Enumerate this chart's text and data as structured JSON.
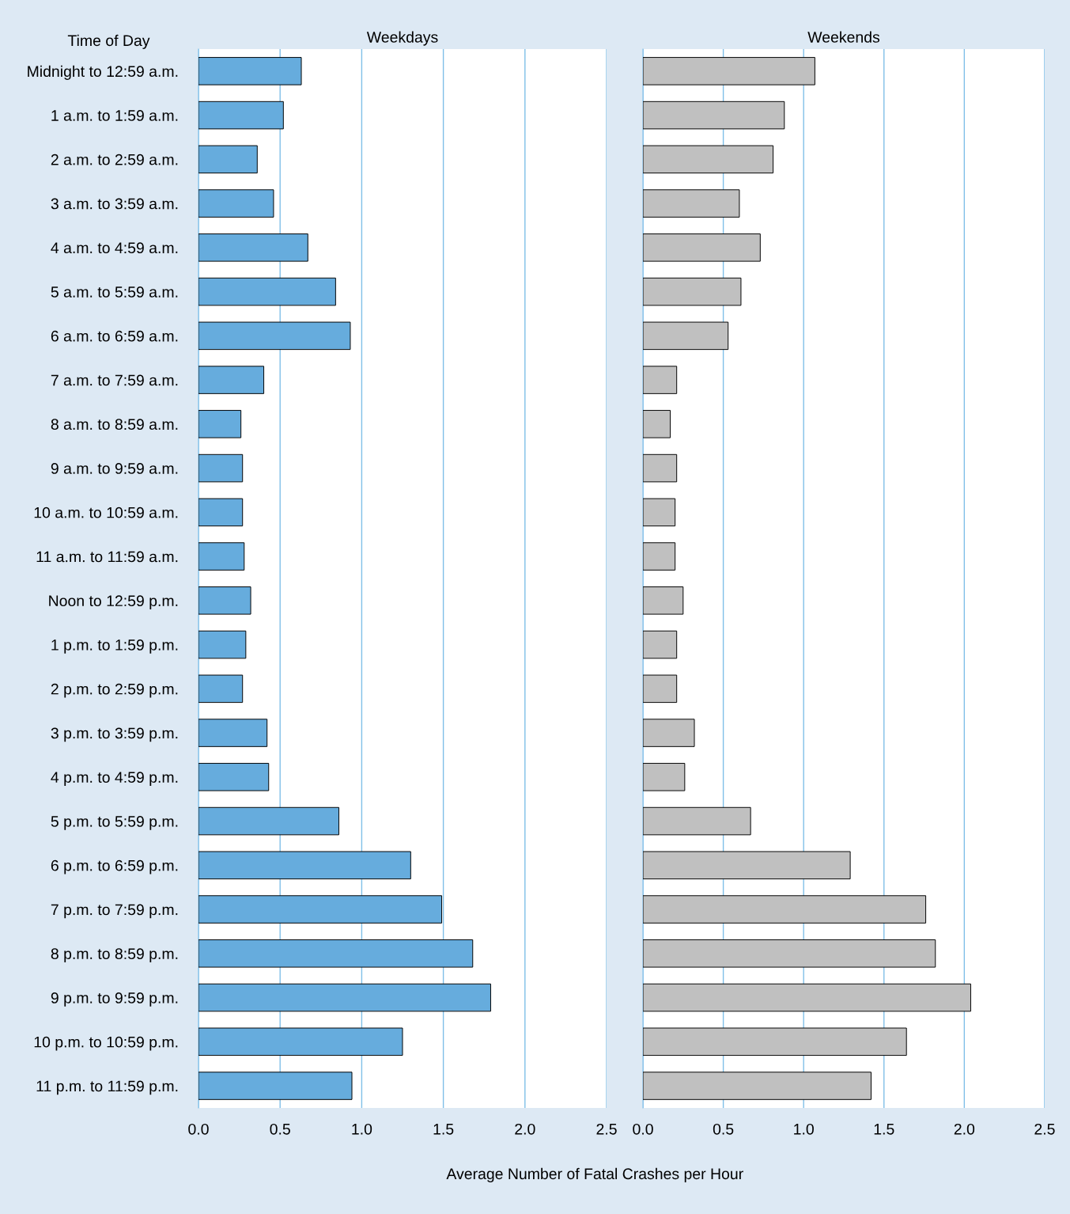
{
  "chart_data": [
    {
      "type": "bar",
      "orientation": "horizontal",
      "title": "Weekdays",
      "ylabel": "Time of Day",
      "xlabel": "Average Number of Fatal Crashes per Hour",
      "categories": [
        "Midnight to 12:59 a.m.",
        "1 a.m. to 1:59 a.m.",
        "2 a.m. to 2:59 a.m.",
        "3 a.m. to 3:59 a.m.",
        "4 a.m. to 4:59 a.m.",
        "5 a.m. to 5:59 a.m.",
        "6 a.m. to 6:59 a.m.",
        "7 a.m. to 7:59 a.m.",
        "8 a.m. to 8:59 a.m.",
        "9 a.m. to 9:59 a.m.",
        "10 a.m. to 10:59 a.m.",
        "11 a.m. to 11:59 a.m.",
        "Noon to 12:59 p.m.",
        "1 p.m. to 1:59 p.m.",
        "2 p.m. to 2:59 p.m.",
        "3 p.m. to 3:59 p.m.",
        "4 p.m. to 4:59 p.m.",
        "5 p.m. to 5:59 p.m.",
        "6 p.m. to 6:59 p.m.",
        "7 p.m. to 7:59 p.m.",
        "8 p.m. to 8:59 p.m.",
        "9 p.m. to 9:59 p.m.",
        "10 p.m. to 10:59 p.m.",
        "11 p.m. to 11:59 p.m."
      ],
      "values": [
        0.63,
        0.52,
        0.36,
        0.46,
        0.67,
        0.84,
        0.93,
        0.4,
        0.26,
        0.27,
        0.27,
        0.28,
        0.32,
        0.29,
        0.27,
        0.42,
        0.43,
        0.86,
        1.3,
        1.49,
        1.68,
        1.79,
        1.25,
        0.94
      ],
      "color": "#66acdd",
      "xlim": [
        0,
        2.5
      ],
      "xticks": [
        {
          "value": 0,
          "label": "0.0"
        },
        0.5,
        {
          "value": 1,
          "label": "1.0"
        },
        1.5,
        {
          "value": 2,
          "label": "2.0"
        },
        2.5
      ],
      "grid": "x"
    },
    {
      "type": "bar",
      "orientation": "horizontal",
      "title": "Weekends",
      "categories": [
        null,
        null,
        null,
        null,
        null,
        null,
        null,
        null,
        null,
        null,
        null,
        null,
        null,
        null,
        null,
        null,
        null,
        null,
        null,
        null,
        null,
        null,
        null,
        null
      ],
      "values": [
        1.07,
        0.88,
        0.81,
        0.6,
        0.73,
        0.61,
        0.53,
        0.21,
        0.17,
        0.21,
        0.2,
        0.2,
        0.25,
        0.21,
        0.21,
        0.32,
        0.26,
        0.67,
        1.29,
        1.76,
        1.82,
        2.04,
        1.64,
        1.42
      ],
      "color": "#c0c0c0",
      "xlim": [
        0,
        2.5
      ],
      "xticks": [
        {
          "value": 0,
          "label": "0.0"
        },
        0.5,
        {
          "value": 1,
          "label": "1.0"
        },
        1.5,
        {
          "value": 2,
          "label": "2.0"
        },
        2.5
      ],
      "grid": "x"
    }
  ]
}
